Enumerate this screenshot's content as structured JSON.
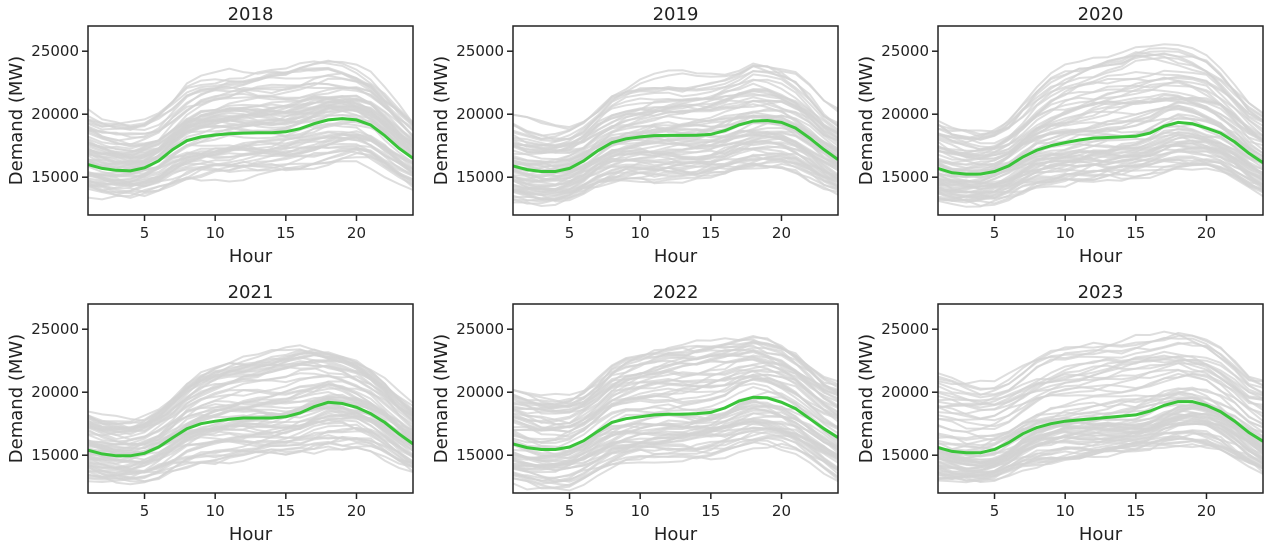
{
  "figure": {
    "line_color_daily": "#d3d3d3",
    "line_color_mean": "#3ac43a",
    "frame_color": "#222222"
  },
  "chart_data": [
    {
      "type": "line",
      "title": "2018",
      "xlabel": "Hour",
      "ylabel": "Demand (MW)",
      "xlim": [
        1,
        24
      ],
      "ylim": [
        12000,
        27000
      ],
      "xticks": [
        5,
        10,
        15,
        20
      ],
      "yticks": [
        15000,
        20000,
        25000
      ],
      "grid": false,
      "x": [
        1,
        2,
        3,
        4,
        5,
        6,
        7,
        8,
        9,
        10,
        11,
        12,
        13,
        14,
        15,
        16,
        17,
        18,
        19,
        20,
        21,
        22,
        23,
        24
      ],
      "series": [
        {
          "values": [
            16000,
            15700,
            15550,
            15500,
            15750,
            16300,
            17200,
            17900,
            18200,
            18350,
            18450,
            18500,
            18520,
            18520,
            18600,
            18850,
            19250,
            19550,
            19650,
            19550,
            19150,
            18300,
            17300,
            16500
          ]
        }
      ],
      "band": {
        "lower": [
          13500,
          13300,
          13200,
          13200,
          13300,
          13600,
          14000,
          14300,
          14500,
          14600,
          14600,
          14700,
          14700,
          14800,
          14900,
          15000,
          15200,
          15500,
          15800,
          16000,
          15700,
          15000,
          14300,
          13700
        ],
        "upper": [
          20500,
          20000,
          19700,
          19600,
          19700,
          20200,
          21200,
          22500,
          23100,
          23400,
          23600,
          23700,
          23800,
          23900,
          24000,
          24200,
          24400,
          24500,
          24300,
          24000,
          23300,
          22200,
          21000,
          19800
        ]
      }
    },
    {
      "type": "line",
      "title": "2019",
      "xlabel": "Hour",
      "ylabel": "Demand (MW)",
      "xlim": [
        1,
        24
      ],
      "ylim": [
        12000,
        27000
      ],
      "xticks": [
        5,
        10,
        15,
        20
      ],
      "yticks": [
        15000,
        20000,
        25000
      ],
      "grid": false,
      "x": [
        1,
        2,
        3,
        4,
        5,
        6,
        7,
        8,
        9,
        10,
        11,
        12,
        13,
        14,
        15,
        16,
        17,
        18,
        19,
        20,
        21,
        22,
        23,
        24
      ],
      "series": [
        {
          "values": [
            15900,
            15600,
            15450,
            15450,
            15700,
            16300,
            17100,
            17750,
            18050,
            18200,
            18300,
            18320,
            18320,
            18330,
            18400,
            18700,
            19150,
            19450,
            19500,
            19350,
            18900,
            18100,
            17200,
            16400
          ]
        }
      ],
      "band": {
        "lower": [
          13300,
          13100,
          13000,
          12900,
          13100,
          13500,
          14000,
          14400,
          14600,
          14700,
          14700,
          14800,
          14800,
          14800,
          14900,
          15000,
          15200,
          15400,
          15500,
          15600,
          15400,
          14900,
          14300,
          13800
        ],
        "upper": [
          20000,
          19700,
          19400,
          19300,
          19400,
          19900,
          20800,
          21800,
          22400,
          22800,
          23100,
          23300,
          23400,
          23500,
          23600,
          23800,
          24000,
          24500,
          24300,
          23900,
          23300,
          22300,
          21000,
          20300
        ]
      }
    },
    {
      "type": "line",
      "title": "2020",
      "xlabel": "Hour",
      "ylabel": "Demand (MW)",
      "xlim": [
        1,
        24
      ],
      "ylim": [
        12000,
        27000
      ],
      "xticks": [
        5,
        10,
        15,
        20
      ],
      "yticks": [
        15000,
        20000,
        25000
      ],
      "grid": false,
      "x": [
        1,
        2,
        3,
        4,
        5,
        6,
        7,
        8,
        9,
        10,
        11,
        12,
        13,
        14,
        15,
        16,
        17,
        18,
        19,
        20,
        21,
        22,
        23,
        24
      ],
      "series": [
        {
          "values": [
            15700,
            15350,
            15250,
            15250,
            15450,
            15900,
            16600,
            17150,
            17500,
            17750,
            17950,
            18100,
            18150,
            18200,
            18250,
            18500,
            19050,
            19350,
            19250,
            18900,
            18500,
            17800,
            16900,
            16150
          ]
        }
      ],
      "band": {
        "lower": [
          13200,
          13000,
          12900,
          12800,
          12900,
          13200,
          13700,
          14100,
          14300,
          14500,
          14600,
          14700,
          14800,
          14900,
          15000,
          15100,
          15300,
          15500,
          15600,
          15700,
          15500,
          14900,
          14200,
          13600
        ],
        "upper": [
          19700,
          19300,
          19000,
          18900,
          19100,
          19700,
          20900,
          22200,
          23200,
          23900,
          24400,
          24800,
          25200,
          25500,
          25900,
          26000,
          25800,
          25500,
          25200,
          24800,
          23800,
          22500,
          21200,
          20500
        ]
      }
    },
    {
      "type": "line",
      "title": "2021",
      "xlabel": "Hour",
      "ylabel": "Demand (MW)",
      "xlim": [
        1,
        24
      ],
      "ylim": [
        12000,
        27000
      ],
      "xticks": [
        5,
        10,
        15,
        20
      ],
      "yticks": [
        15000,
        20000,
        25000
      ],
      "grid": false,
      "x": [
        1,
        2,
        3,
        4,
        5,
        6,
        7,
        8,
        9,
        10,
        11,
        12,
        13,
        14,
        15,
        16,
        17,
        18,
        19,
        20,
        21,
        22,
        23,
        24
      ],
      "series": [
        {
          "values": [
            15400,
            15100,
            14950,
            14950,
            15150,
            15650,
            16400,
            17100,
            17500,
            17700,
            17850,
            17950,
            17950,
            17950,
            18050,
            18350,
            18850,
            19200,
            19100,
            18800,
            18300,
            17600,
            16700,
            15900
          ]
        }
      ],
      "band": {
        "lower": [
          13000,
          12800,
          12700,
          12700,
          12800,
          13200,
          13700,
          14100,
          14300,
          14400,
          14500,
          14600,
          14700,
          14800,
          14900,
          15000,
          15200,
          15400,
          15500,
          15600,
          15400,
          14800,
          14100,
          13500
        ],
        "upper": [
          18700,
          18300,
          18100,
          18000,
          18200,
          18800,
          19800,
          21000,
          21900,
          22600,
          23000,
          23300,
          23500,
          23800,
          24000,
          24200,
          24000,
          23700,
          23400,
          23000,
          22300,
          21300,
          20100,
          19200
        ]
      }
    },
    {
      "type": "line",
      "title": "2022",
      "xlabel": "Hour",
      "ylabel": "Demand (MW)",
      "xlim": [
        1,
        24
      ],
      "ylim": [
        12000,
        27000
      ],
      "xticks": [
        5,
        10,
        15,
        20
      ],
      "yticks": [
        15000,
        20000,
        25000
      ],
      "grid": false,
      "x": [
        1,
        2,
        3,
        4,
        5,
        6,
        7,
        8,
        9,
        10,
        11,
        12,
        13,
        14,
        15,
        16,
        17,
        18,
        19,
        20,
        21,
        22,
        23,
        24
      ],
      "series": [
        {
          "values": [
            15900,
            15600,
            15450,
            15450,
            15650,
            16150,
            16900,
            17600,
            17900,
            18050,
            18200,
            18250,
            18250,
            18300,
            18400,
            18750,
            19300,
            19600,
            19550,
            19200,
            18700,
            17900,
            17100,
            16400
          ]
        }
      ],
      "band": {
        "lower": [
          12700,
          12500,
          12300,
          12200,
          12300,
          12700,
          13200,
          13700,
          14000,
          14200,
          14300,
          14400,
          14500,
          14600,
          14800,
          14900,
          15100,
          15300,
          15300,
          15200,
          14900,
          14300,
          13600,
          12900
        ],
        "upper": [
          20300,
          20000,
          19700,
          19600,
          19700,
          20200,
          21100,
          22200,
          22800,
          23200,
          23500,
          23700,
          23900,
          24000,
          24200,
          24300,
          24400,
          24600,
          24300,
          23900,
          23200,
          22200,
          21300,
          20800
        ]
      }
    },
    {
      "type": "line",
      "title": "2023",
      "xlabel": "Hour",
      "ylabel": "Demand (MW)",
      "xlim": [
        1,
        24
      ],
      "ylim": [
        12000,
        27000
      ],
      "xticks": [
        5,
        10,
        15,
        20
      ],
      "yticks": [
        15000,
        20000,
        25000
      ],
      "grid": false,
      "x": [
        1,
        2,
        3,
        4,
        5,
        6,
        7,
        8,
        9,
        10,
        11,
        12,
        13,
        14,
        15,
        16,
        17,
        18,
        19,
        20,
        21,
        22,
        23,
        24
      ],
      "series": [
        {
          "values": [
            15600,
            15300,
            15200,
            15200,
            15450,
            16000,
            16700,
            17200,
            17500,
            17700,
            17800,
            17900,
            18000,
            18100,
            18200,
            18500,
            18950,
            19250,
            19250,
            18950,
            18450,
            17700,
            16800,
            16100
          ]
        }
      ],
      "band": {
        "lower": [
          12900,
          12700,
          12600,
          12500,
          12600,
          13000,
          13500,
          13900,
          14100,
          14300,
          14400,
          14500,
          14600,
          14700,
          14800,
          14900,
          15100,
          15300,
          15400,
          15400,
          15100,
          14500,
          13900,
          13300
        ],
        "upper": [
          21500,
          21300,
          21100,
          20900,
          21000,
          21400,
          22100,
          22800,
          23200,
          23500,
          23700,
          23900,
          24100,
          24300,
          24500,
          24700,
          24800,
          24800,
          24600,
          24200,
          23500,
          22500,
          21500,
          21200
        ]
      }
    }
  ]
}
